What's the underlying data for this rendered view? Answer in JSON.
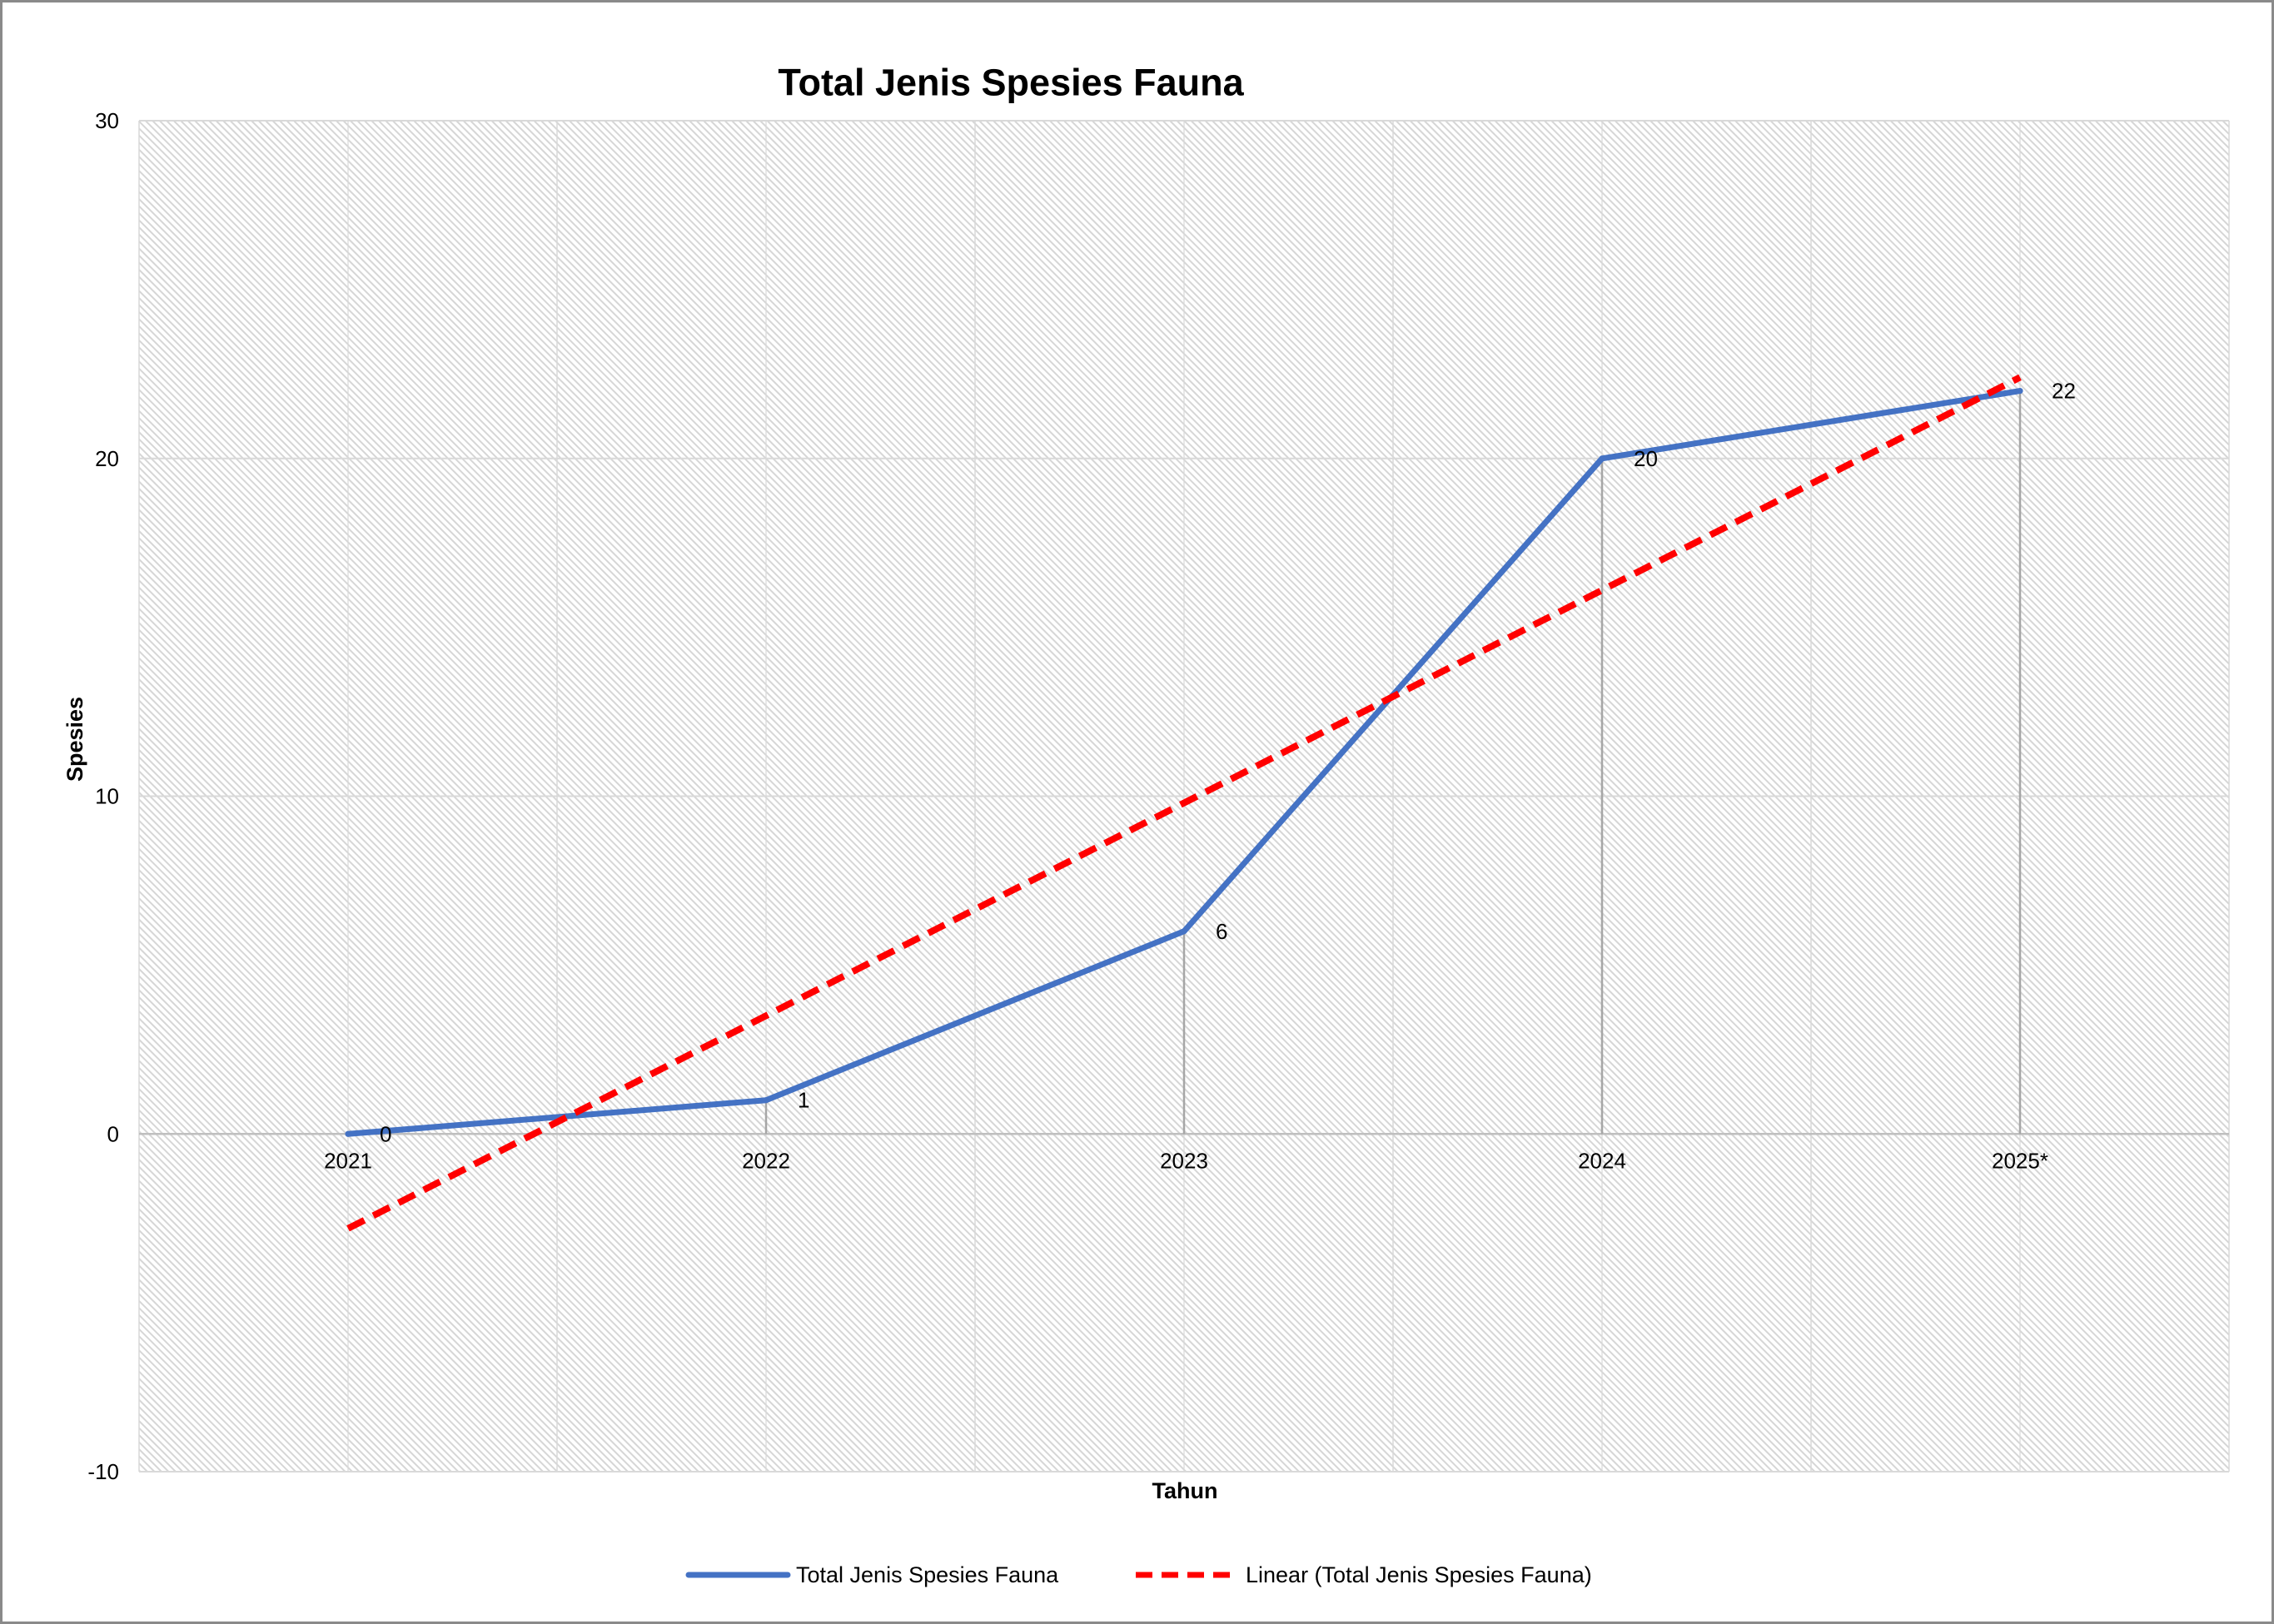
{
  "chart_data": {
    "type": "line",
    "title": "Total Jenis Spesies Fauna",
    "xlabel": "Tahun",
    "ylabel": "Spesies",
    "categories": [
      "2021",
      "2022",
      "2023",
      "2024",
      "2025*"
    ],
    "series": [
      {
        "name": "Total Jenis Spesies Fauna",
        "values": [
          0,
          1,
          6,
          20,
          22
        ],
        "color": "#4472C4",
        "data_labels": "right"
      }
    ],
    "trendline": {
      "type": "linear",
      "name": "Linear (Total Jenis Spesies Fauna)",
      "color": "#FF0000",
      "style": "dashed"
    },
    "ylim": [
      -10,
      30
    ],
    "yticks": [
      30,
      20,
      10,
      0,
      -10
    ],
    "grid": true,
    "drop_lines": true,
    "legend": "bottom",
    "colors": {
      "grid": "#D9D9D9",
      "axis": "#BFBFBF",
      "drop_lines": "#A6A6A6"
    }
  }
}
